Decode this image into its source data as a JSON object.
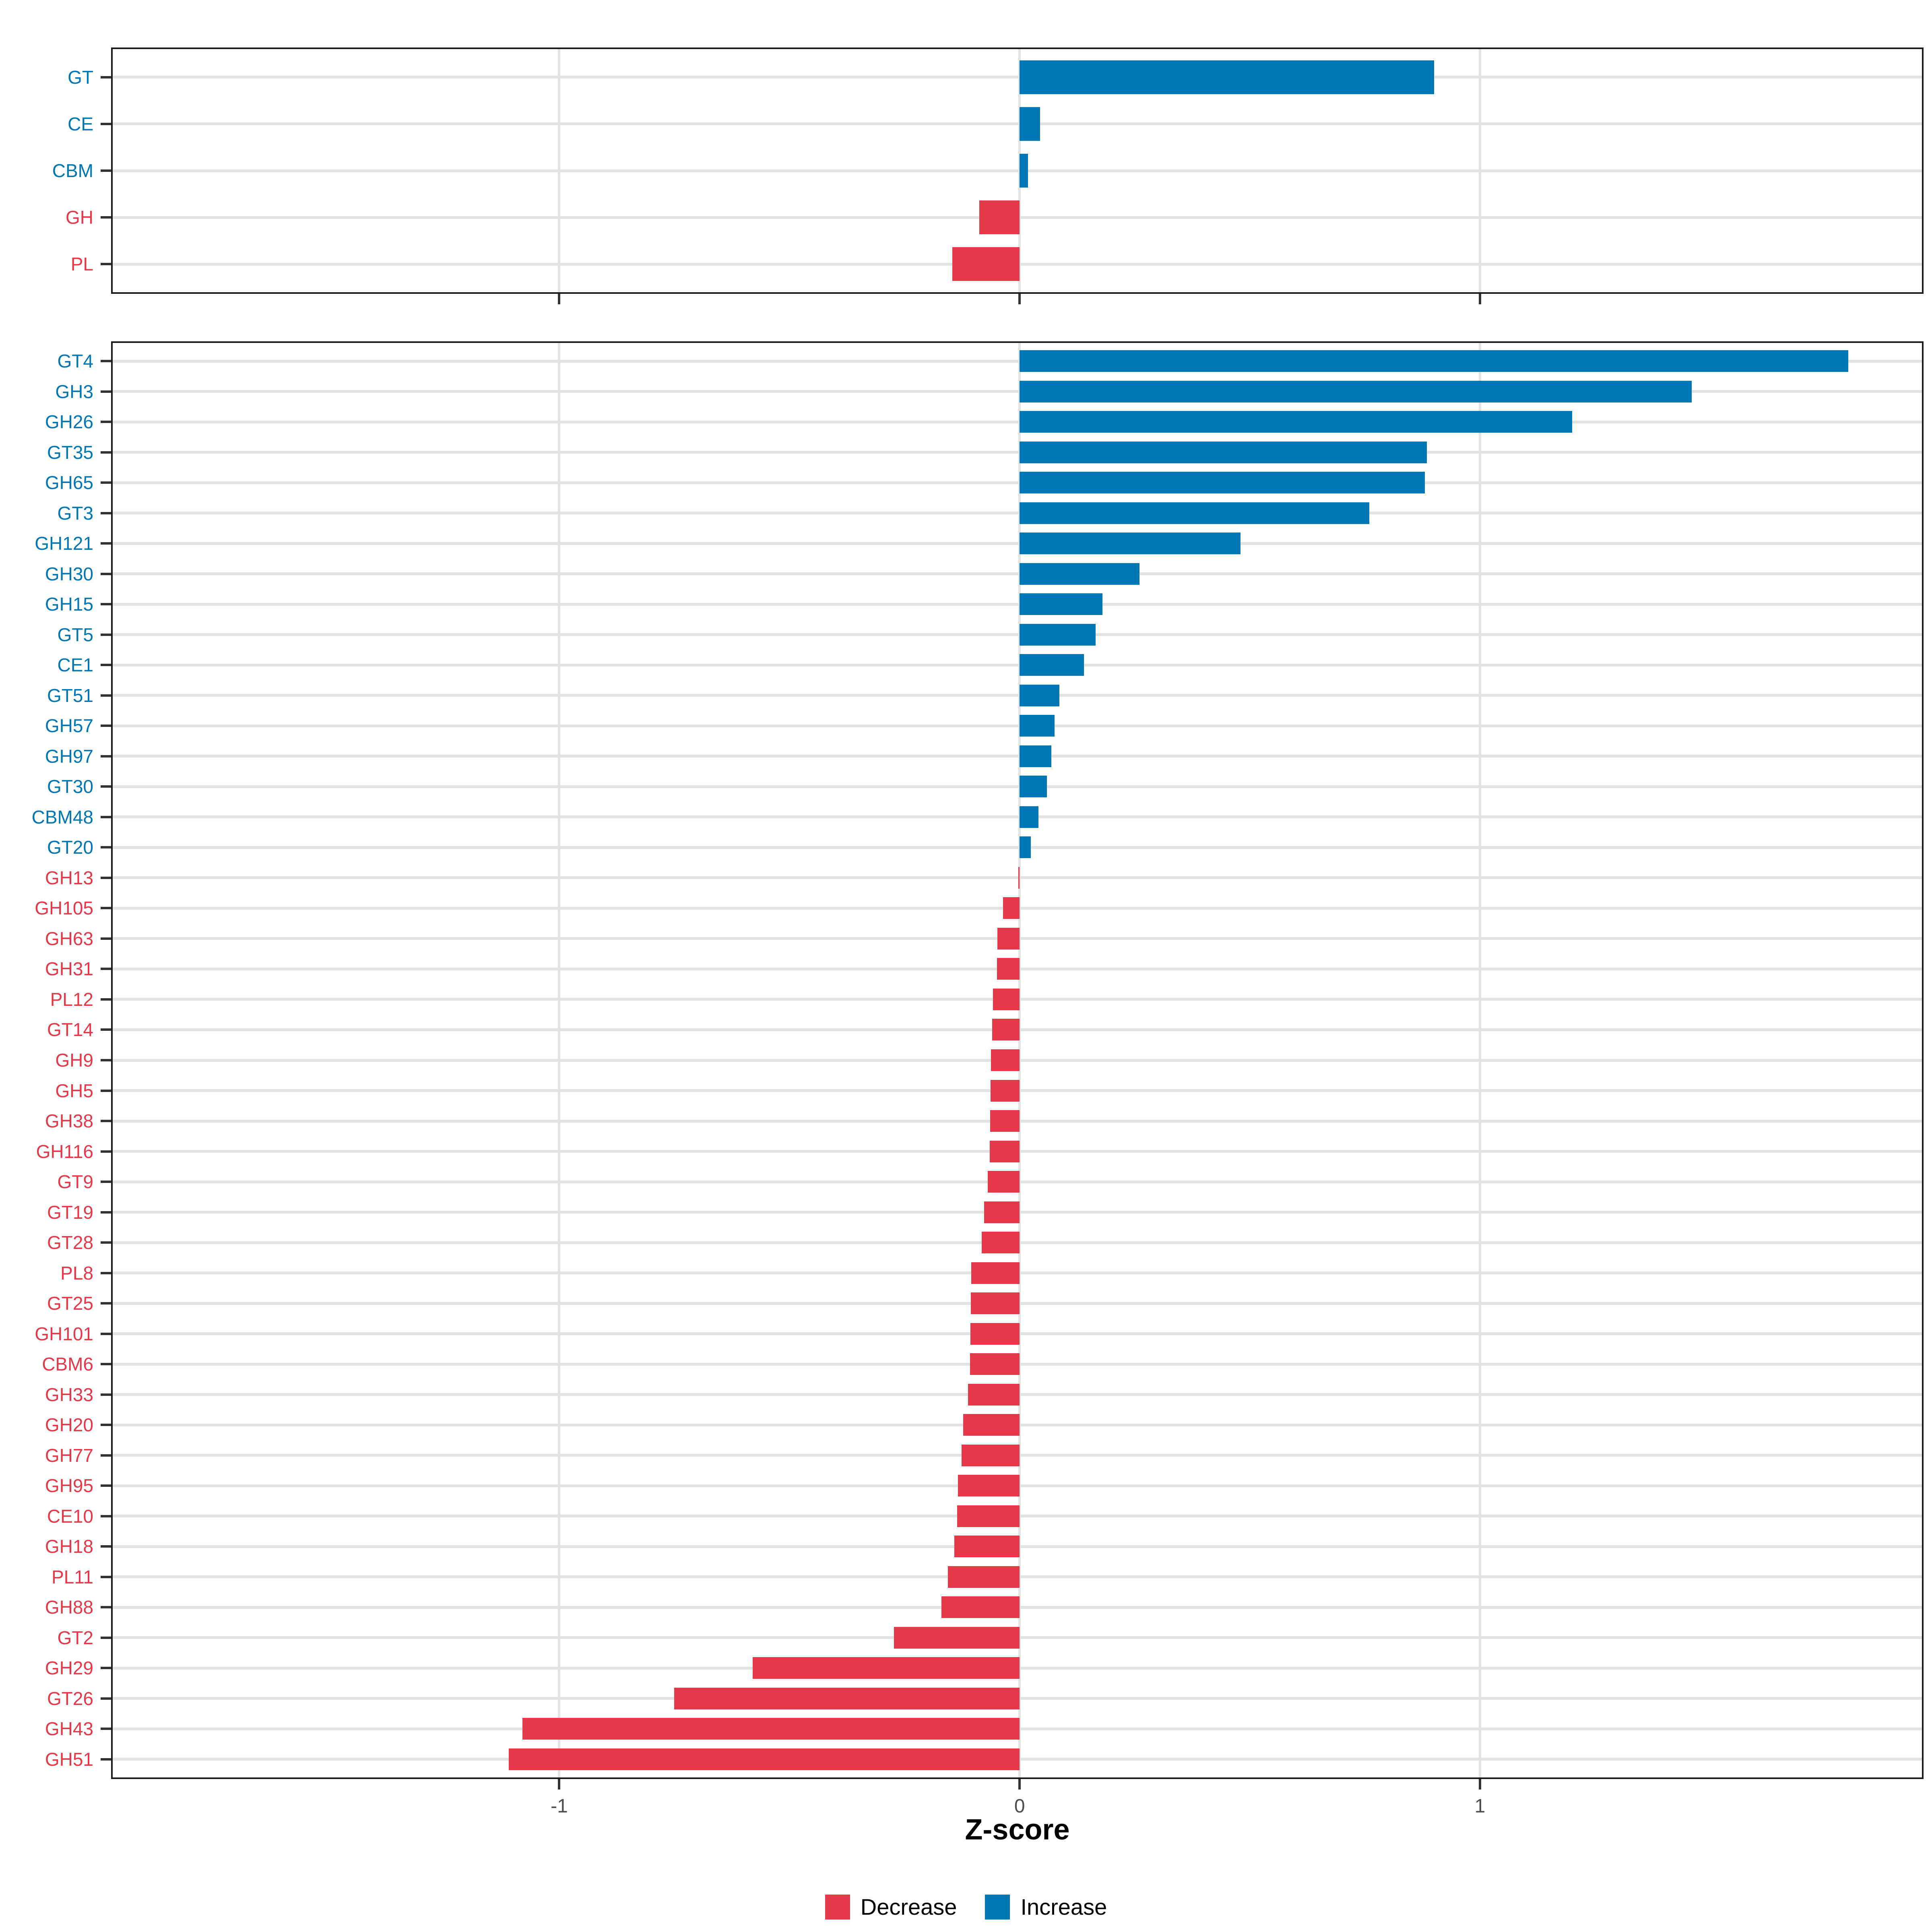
{
  "axis": {
    "title": "Z-score",
    "tick_values": [
      -1,
      0,
      1
    ],
    "tick_labels": [
      "-1",
      "0",
      "1"
    ],
    "range": [
      -1.97,
      1.96
    ]
  },
  "legend": {
    "items": [
      {
        "label": "Decrease",
        "color": "#E5394A"
      },
      {
        "label": "Increase",
        "color": "#0076B4"
      }
    ]
  },
  "colors": {
    "increase": "#0076B4",
    "decrease": "#E5394A",
    "grid": "#E2E2E2",
    "panel_border": "#1A1A1A",
    "tick": "#333333",
    "axis_text": "#4D4D4D",
    "background": "#FFFFFF"
  },
  "chart_data": [
    {
      "type": "bar",
      "panel": "category-level",
      "orientation": "horizontal",
      "categories": [
        "GT",
        "CE",
        "CBM",
        "GH",
        "PL"
      ],
      "values": [
        0.9,
        0.044,
        0.018,
        -0.088,
        -0.146
      ],
      "xlabel": "Z-score",
      "xlim": [
        -1.97,
        1.96
      ],
      "grid": "major vertical at -1, 0, 1; one horizontal gridline per category",
      "legend_position": "bottom"
    },
    {
      "type": "bar",
      "panel": "family-level",
      "orientation": "horizontal",
      "categories": [
        "GT4",
        "GH3",
        "GH26",
        "GT35",
        "GH65",
        "GT3",
        "GH121",
        "GH30",
        "GH15",
        "GT5",
        "CE1",
        "GT51",
        "GH57",
        "GH97",
        "GT30",
        "CBM48",
        "GT20",
        "GH13",
        "GH105",
        "GH63",
        "GH31",
        "PL12",
        "GT14",
        "GH9",
        "GH5",
        "GH38",
        "GH116",
        "GT9",
        "GT19",
        "GT28",
        "PL8",
        "GT25",
        "GH101",
        "CBM6",
        "GH33",
        "GH20",
        "GH77",
        "GH95",
        "CE10",
        "GH18",
        "PL11",
        "GH88",
        "GT2",
        "GH29",
        "GT26",
        "GH43",
        "GH51"
      ],
      "values": [
        1.8,
        1.46,
        1.2,
        0.885,
        0.88,
        0.76,
        0.48,
        0.26,
        0.18,
        0.165,
        0.14,
        0.086,
        0.076,
        0.069,
        0.059,
        0.041,
        0.024,
        -0.003,
        -0.036,
        -0.048,
        -0.049,
        -0.058,
        -0.06,
        -0.062,
        -0.063,
        -0.064,
        -0.065,
        -0.069,
        -0.077,
        -0.082,
        -0.105,
        -0.106,
        -0.107,
        -0.108,
        -0.112,
        -0.123,
        -0.126,
        -0.134,
        -0.136,
        -0.142,
        -0.156,
        -0.17,
        -0.273,
        -0.58,
        -0.75,
        -1.08,
        -1.11
      ],
      "xlabel": "Z-score",
      "xlim": [
        -1.97,
        1.96
      ]
    }
  ]
}
